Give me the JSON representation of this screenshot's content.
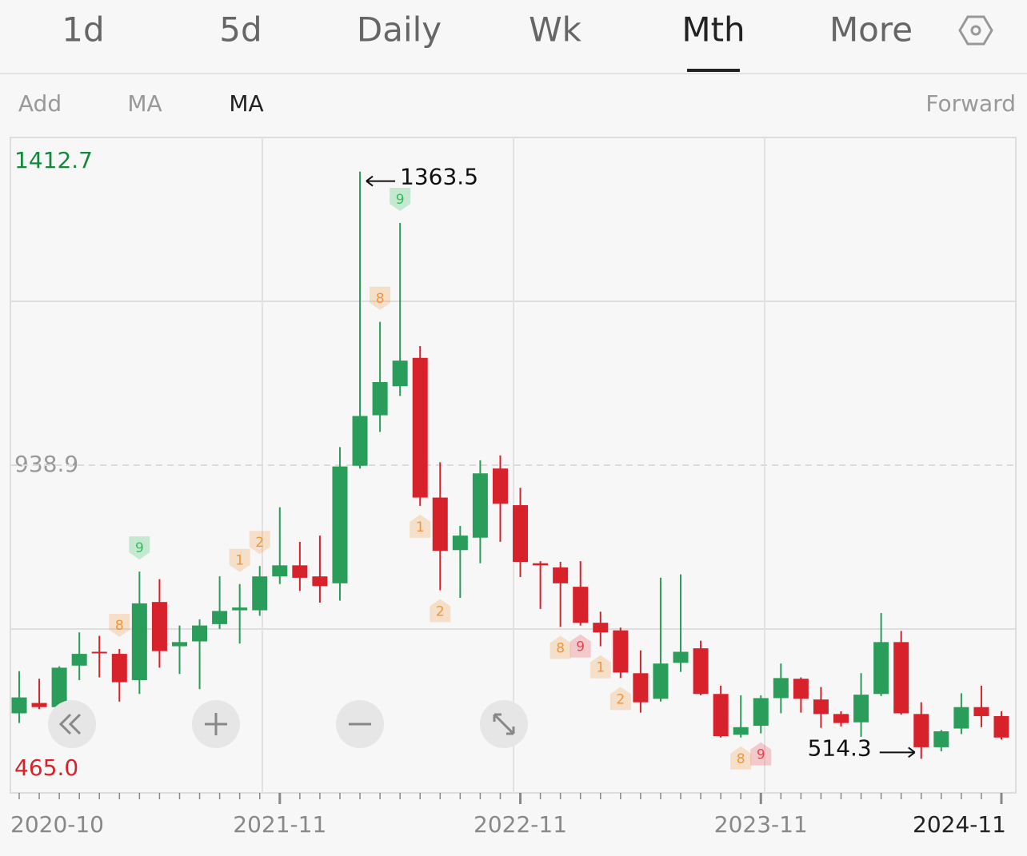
{
  "tabs": [
    "1d",
    "5d",
    "Daily",
    "Wk",
    "Mth",
    "More"
  ],
  "active_tab": 4,
  "toolbar": [
    "Add",
    "MA",
    "MA"
  ],
  "adjust": "Forward",
  "chart_data": {
    "type": "candlestick",
    "categories": [
      "2020-10",
      null,
      null,
      null,
      null,
      null,
      null,
      null,
      null,
      null,
      null,
      null,
      null,
      "2021-11",
      null,
      null,
      null,
      null,
      null,
      null,
      null,
      null,
      null,
      null,
      null,
      "2022-11",
      null,
      null,
      null,
      null,
      null,
      null,
      null,
      null,
      null,
      null,
      null,
      "2023-11",
      null,
      null,
      null,
      null,
      null,
      null,
      null,
      null,
      null,
      null,
      null,
      "2024-11"
    ],
    "open": [
      580,
      595,
      589,
      649,
      669,
      666,
      628,
      741,
      677,
      684,
      709,
      729,
      729,
      778,
      794,
      778,
      768,
      938,
      1011,
      1053,
      1094,
      892,
      816,
      834,
      934,
      881,
      797,
      791,
      763,
      711,
      700,
      638,
      601,
      653,
      674,
      608,
      549,
      562,
      602,
      630,
      600,
      579,
      567,
      608,
      683,
      579,
      531,
      558,
      589,
      576
    ],
    "high": [
      641,
      630,
      648,
      697,
      692,
      673,
      785,
      774,
      707,
      716,
      778,
      767,
      793,
      878,
      828,
      837,
      965,
      1363.5,
      1146,
      1289,
      1111,
      943,
      851,
      946,
      953,
      906,
      800,
      799,
      800,
      727,
      704,
      671,
      776,
      781,
      685,
      620,
      606,
      606,
      652,
      632,
      618,
      583,
      638,
      725,
      699,
      596,
      556,
      609,
      620,
      583
    ],
    "low": [
      566,
      586,
      584,
      628,
      632,
      597,
      608,
      646,
      637,
      615,
      702,
      681,
      721,
      767,
      757,
      740,
      743,
      934,
      987,
      1039,
      880,
      758,
      747,
      797,
      828,
      777,
      731,
      705,
      707,
      677,
      631,
      581,
      597,
      640,
      606,
      545,
      545,
      551,
      580,
      581,
      559,
      561,
      546,
      605,
      578,
      514.3,
      525,
      550,
      560,
      542
    ],
    "close": [
      603,
      589,
      646,
      666,
      667,
      625,
      739,
      670,
      683,
      707,
      728,
      733,
      778,
      794,
      776,
      764,
      937,
      1010,
      1059,
      1090,
      892,
      815,
      837,
      927,
      883,
      799,
      794,
      768,
      711,
      697,
      639,
      596,
      652,
      669,
      608,
      547,
      560,
      602,
      631,
      601,
      579,
      566,
      607,
      683,
      580,
      531,
      554,
      589,
      576,
      545
    ],
    "up_color": "#2a9d5a",
    "down_color": "#d7222b",
    "ylim": [
      465.0,
      1412.7
    ],
    "yticks": [
      1412.7,
      938.9,
      {
        "value": 465.0,
        "label": "465.0"
      }
    ],
    "ytick_colors": [
      "#118a3c",
      "#999999",
      "#d7222b"
    ],
    "grid": true,
    "markers": [
      {
        "index": 5,
        "label": "8",
        "position": "above",
        "color": "#f0963c"
      },
      {
        "index": 6,
        "label": "9",
        "position": "above",
        "color": "#2fc05a"
      },
      {
        "index": 11,
        "label": "1",
        "position": "above",
        "color": "#f0963c"
      },
      {
        "index": 12,
        "label": "2",
        "position": "above",
        "color": "#f0963c"
      },
      {
        "index": 18,
        "label": "8",
        "position": "above",
        "color": "#f0963c"
      },
      {
        "index": 19,
        "label": "9",
        "position": "above",
        "color": "#2fc05a"
      },
      {
        "index": 20,
        "label": "1",
        "position": "below",
        "color": "#f0963c"
      },
      {
        "index": 21,
        "label": "2",
        "position": "below",
        "color": "#f0963c"
      },
      {
        "index": 27,
        "label": "8",
        "position": "below",
        "color": "#f0963c"
      },
      {
        "index": 28,
        "label": "9",
        "position": "below",
        "color": "#e8454a"
      },
      {
        "index": 29,
        "label": "1",
        "position": "below",
        "color": "#f0963c"
      },
      {
        "index": 30,
        "label": "2",
        "position": "below",
        "color": "#f0963c"
      },
      {
        "index": 36,
        "label": "8",
        "position": "below",
        "color": "#f0963c"
      },
      {
        "index": 37,
        "label": "9",
        "position": "below",
        "color": "#e8454a"
      }
    ]
  }
}
